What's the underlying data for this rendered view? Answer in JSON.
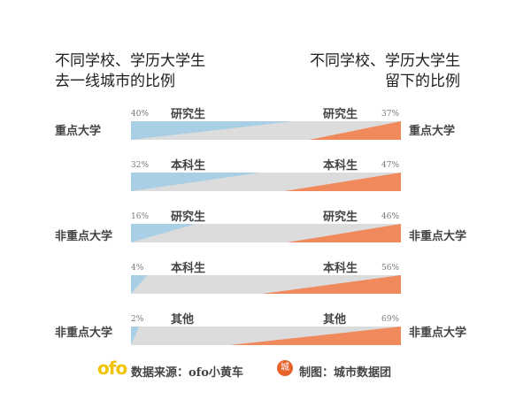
{
  "chart_data": {
    "type": "bar",
    "title_left": [
      "不同学校、学历大学生",
      "去一线城市的比例"
    ],
    "title_right": [
      "不同学校、学历大学生",
      "留下的比例"
    ],
    "rows": [
      {
        "group": "重点大学",
        "degree": "研究生",
        "first_tier_pct": 40,
        "stay_pct": 37
      },
      {
        "group": "",
        "degree": "本科生",
        "first_tier_pct": 32,
        "stay_pct": 47
      },
      {
        "group": "非重点大学",
        "degree": "研究生",
        "first_tier_pct": 16,
        "stay_pct": 46
      },
      {
        "group": "",
        "degree": "本科生",
        "first_tier_pct": 4,
        "stay_pct": 56
      },
      {
        "group": "非重点大学",
        "degree": "其他",
        "first_tier_pct": 2,
        "stay_pct": 69
      }
    ],
    "colors": {
      "left": "#a9cfe6",
      "right": "#f08a5d",
      "track": "#dcdcdc"
    }
  },
  "footer": {
    "logo": "ofo",
    "source": "数据来源：ofo小黄车",
    "maker_badge": "城",
    "maker": "制图：城市数据团"
  }
}
